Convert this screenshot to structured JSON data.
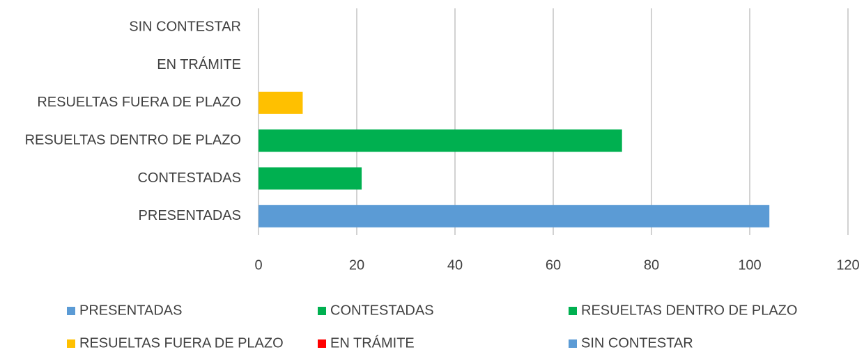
{
  "chart_data": {
    "type": "bar",
    "orientation": "horizontal",
    "categories": [
      "PRESENTADAS",
      "CONTESTADAS",
      "RESUELTAS DENTRO DE PLAZO",
      "RESUELTAS FUERA DE PLAZO",
      "EN TRÁMITE",
      "SIN CONTESTAR"
    ],
    "values": [
      104,
      21,
      74,
      9,
      0,
      0
    ],
    "colors": [
      "#5b9bd5",
      "#00b050",
      "#00b050",
      "#ffc000",
      "#ff0000",
      "#5b9bd5"
    ],
    "xlim": [
      0,
      120
    ],
    "xticks": [
      0,
      20,
      40,
      60,
      80,
      100,
      120
    ],
    "grid": true,
    "legend": "bottom"
  }
}
